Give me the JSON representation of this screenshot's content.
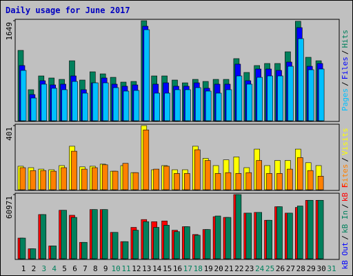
{
  "title": "Daily usage for June 2017",
  "chart_data": [
    {
      "type": "bar",
      "ylim": [
        0,
        1649
      ],
      "yticks": [
        1649
      ],
      "legend_separator": "/",
      "series": [
        {
          "name": "Hits",
          "color": "#00805c",
          "values": [
            1160,
            512,
            739,
            705,
            682,
            989,
            671,
            807,
            773,
            716,
            637,
            648,
            1649,
            739,
            739,
            671,
            625,
            682,
            648,
            682,
            682,
            1024,
            796,
            910,
            944,
            944,
            1137,
            1640,
            1046,
            989,
            null
          ]
        },
        {
          "name": "Files",
          "color": "#0000ff",
          "values": [
            910,
            432,
            660,
            591,
            603,
            739,
            512,
            625,
            705,
            603,
            569,
            591,
            1558,
            603,
            625,
            569,
            569,
            625,
            535,
            603,
            603,
            933,
            660,
            853,
            853,
            830,
            967,
            1535,
            898,
            944,
            null
          ]
        },
        {
          "name": "Pages",
          "color": "#00c0ff",
          "values": [
            830,
            375,
            603,
            535,
            512,
            648,
            455,
            625,
            625,
            546,
            489,
            500,
            1501,
            455,
            455,
            512,
            512,
            546,
            489,
            455,
            512,
            739,
            603,
            716,
            739,
            739,
            898,
            1353,
            841,
            853,
            null
          ]
        }
      ]
    },
    {
      "type": "bar",
      "ylim": [
        0,
        401
      ],
      "yticks": [
        401
      ],
      "legend_separator": "/",
      "series": [
        {
          "name": "Visits",
          "color": "#ffff00",
          "values": [
            147,
            138,
            129,
            125,
            151,
            272,
            143,
            147,
            160,
            116,
            151,
            107,
            401,
            125,
            151,
            125,
            125,
            272,
            196,
            151,
            187,
            205,
            138,
            254,
            151,
            183,
            183,
            254,
            169,
            151,
            null
          ]
        },
        {
          "name": "Sites",
          "color": "#ff8000",
          "values": [
            138,
            120,
            120,
            116,
            138,
            241,
            129,
            138,
            156,
            116,
            165,
            107,
            374,
            129,
            147,
            102,
            102,
            250,
            183,
            102,
            107,
            102,
            107,
            183,
            102,
            102,
            129,
            201,
            120,
            85,
            null
          ]
        }
      ]
    },
    {
      "type": "bar",
      "ylim": [
        0,
        60971
      ],
      "yticks": [
        60971
      ],
      "legend_separator": "/",
      "categories": [
        "1",
        "2",
        "3",
        "4",
        "5",
        "6",
        "7",
        "8",
        "9",
        "10",
        "11",
        "12",
        "13",
        "14",
        "15",
        "16",
        "17",
        "18",
        "19",
        "20",
        "21",
        "22",
        "23",
        "24",
        "25",
        "26",
        "27",
        "28",
        "29",
        "30",
        "31"
      ],
      "label_colors": [
        "#000000",
        "#000000",
        "#00805c",
        "#00805c",
        "#000000",
        "#000000",
        "#000000",
        "#000000",
        "#000000",
        "#00805c",
        "#00805c",
        "#000000",
        "#000000",
        "#000000",
        "#000000",
        "#000000",
        "#00805c",
        "#00805c",
        "#000000",
        "#000000",
        "#000000",
        "#000000",
        "#000000",
        "#00805c",
        "#00805c",
        "#000000",
        "#000000",
        "#000000",
        "#000000",
        "#000000",
        "#00805c"
      ],
      "series": [
        {
          "name": "kB F",
          "color": "#ff0000",
          "values": [
            19646,
            9484,
            42002,
            12194,
            46067,
            41325,
            15581,
            46745,
            46745,
            25066,
            16259,
            29808,
            37260,
            35228,
            35905,
            27098,
            30486,
            23034,
            27776,
            39970,
            39292,
            60971,
            43357,
            44035,
            36583,
            49454,
            43357,
            48777,
            55551,
            55551,
            null
          ]
        },
        {
          "name": "kB In",
          "color": "#00805c",
          "values": [
            19646,
            9484,
            42002,
            12194,
            46067,
            39292,
            15581,
            46745,
            46745,
            25066,
            16259,
            27098,
            35228,
            29808,
            31840,
            25743,
            30486,
            22356,
            27776,
            40647,
            39292,
            60971,
            43357,
            44035,
            36583,
            49454,
            43357,
            50132,
            55551,
            55551,
            null
          ]
        },
        {
          "name": "kB Out",
          "color": "#0000ff",
          "values": [
            null,
            null,
            null,
            null,
            null,
            null,
            null,
            null,
            null,
            null,
            null,
            null,
            null,
            null,
            null,
            null,
            null,
            null,
            null,
            null,
            null,
            null,
            null,
            null,
            null,
            null,
            null,
            null,
            null,
            null,
            null
          ]
        }
      ]
    }
  ]
}
